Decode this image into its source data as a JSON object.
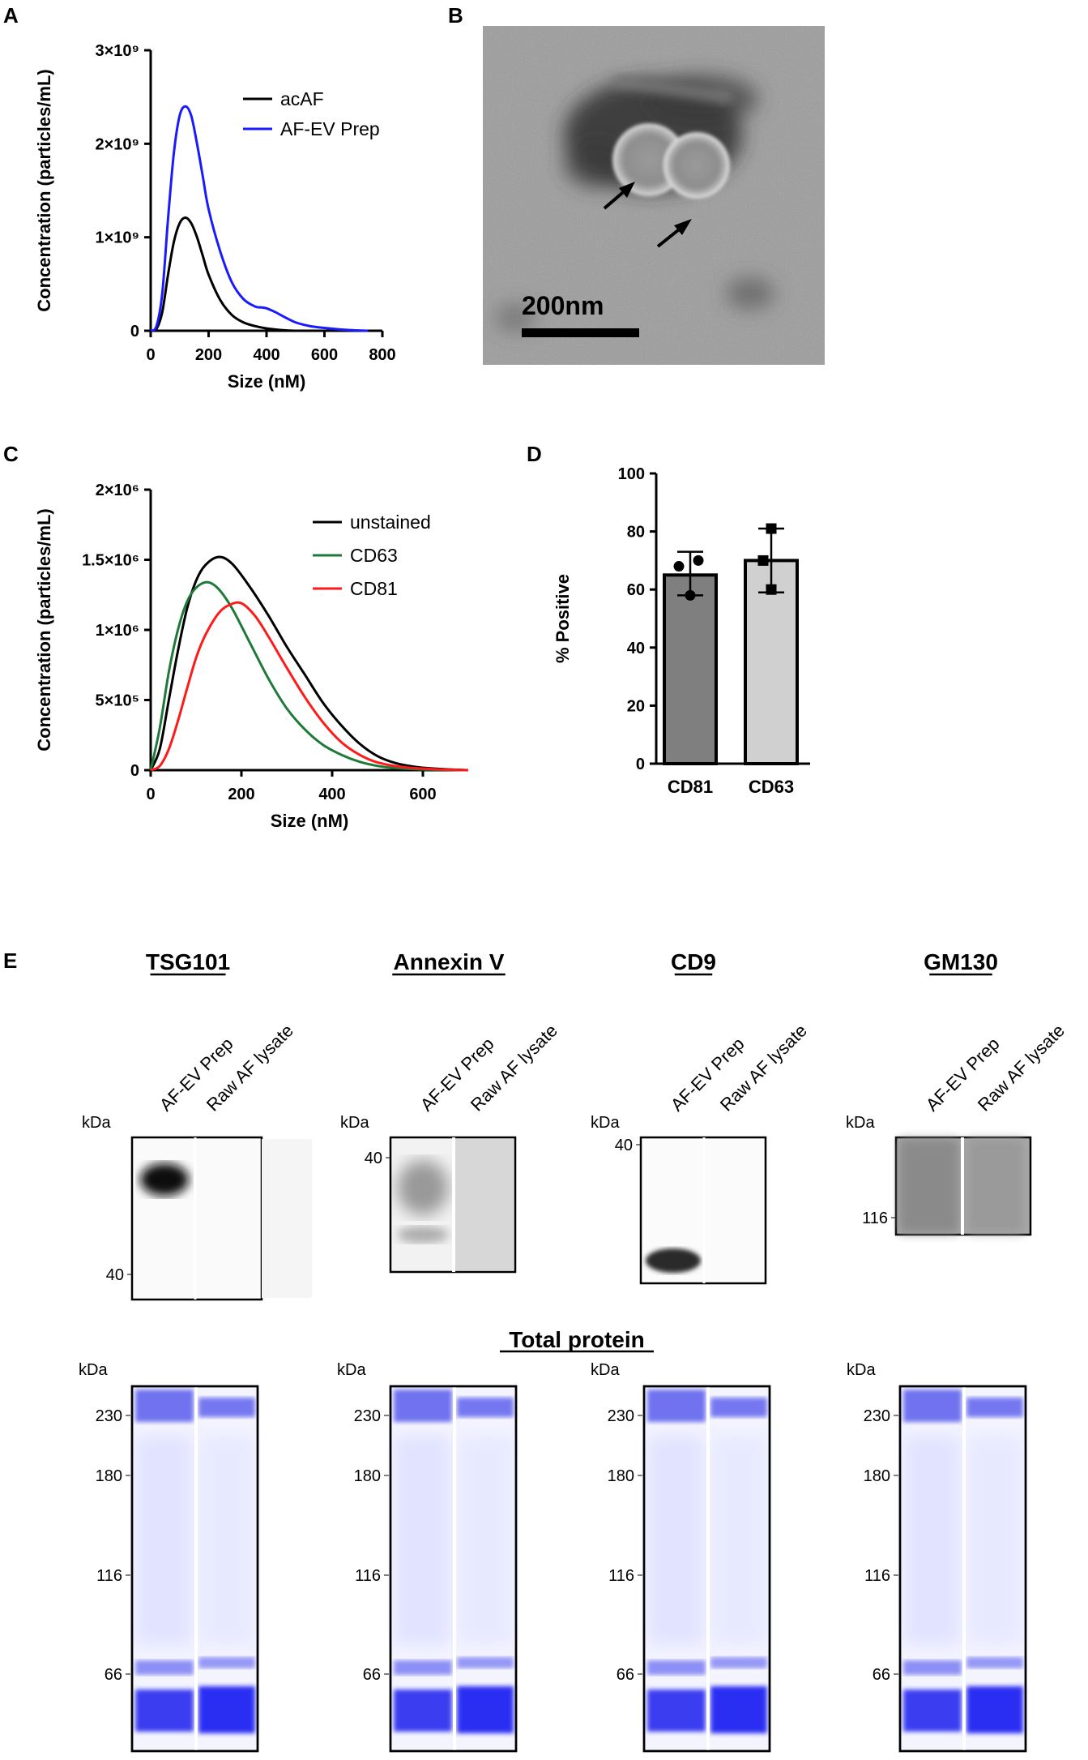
{
  "panels": {
    "A": "A",
    "B": "B",
    "C": "C",
    "D": "D",
    "E": "E"
  },
  "panel_a": {
    "chart_data": {
      "type": "line",
      "title": "",
      "xlabel": "Size (nM)",
      "ylabel": "Concentration (particles/mL)",
      "xlim": [
        0,
        800
      ],
      "ylim": [
        0,
        3000000000
      ],
      "xticks": [
        "0",
        "200",
        "400",
        "600",
        "800"
      ],
      "yticks": [
        "0",
        "1×10⁹",
        "2×10⁹",
        "3×10⁹"
      ],
      "series": [
        {
          "name": "acAF",
          "color": "#000000",
          "x": [
            0,
            20,
            40,
            60,
            80,
            100,
            120,
            140,
            160,
            180,
            200,
            240,
            280,
            320,
            360,
            400,
            450,
            500
          ],
          "y": [
            0,
            20000000,
            200000000,
            600000000,
            950000000,
            1150000000,
            1210000000,
            1150000000,
            1000000000,
            800000000,
            600000000,
            330000000,
            170000000,
            90000000,
            50000000,
            25000000,
            8000000,
            0
          ]
        },
        {
          "name": "AF-EV Prep",
          "color": "#1a1aff",
          "x": [
            0,
            20,
            40,
            60,
            80,
            100,
            120,
            140,
            160,
            180,
            200,
            240,
            280,
            320,
            360,
            380,
            400,
            430,
            460,
            500,
            550,
            600,
            650,
            700,
            750
          ],
          "y": [
            0,
            50000000,
            400000000,
            1200000000,
            1900000000,
            2300000000,
            2400000000,
            2300000000,
            2000000000,
            1650000000,
            1300000000,
            850000000,
            520000000,
            340000000,
            260000000,
            250000000,
            240000000,
            200000000,
            150000000,
            90000000,
            50000000,
            30000000,
            15000000,
            5000000,
            0
          ]
        }
      ]
    }
  },
  "panel_b": {
    "scale_label": "200nm"
  },
  "panel_c": {
    "chart_data": {
      "type": "line",
      "title": "",
      "xlabel": "Size (nM)",
      "ylabel": "Concentration (particles/mL)",
      "xlim": [
        0,
        700
      ],
      "ylim": [
        0,
        2000000
      ],
      "xticks": [
        "0",
        "200",
        "400",
        "600"
      ],
      "yticks": [
        "0",
        "5×10⁵",
        "1×10⁶",
        "1.5×10⁶",
        "2×10⁶"
      ],
      "series": [
        {
          "name": "unstained",
          "color": "#000000",
          "x": [
            0,
            20,
            40,
            60,
            80,
            100,
            120,
            150,
            180,
            220,
            260,
            300,
            340,
            380,
            420,
            460,
            500,
            540,
            580,
            620,
            660,
            700
          ],
          "y": [
            0,
            150000,
            500000,
            850000,
            1150000,
            1350000,
            1460000,
            1520000,
            1470000,
            1300000,
            1100000,
            880000,
            680000,
            480000,
            320000,
            190000,
            100000,
            50000,
            25000,
            12000,
            5000,
            0
          ]
        },
        {
          "name": "CD63",
          "color": "#1f7a3a",
          "x": [
            0,
            20,
            40,
            60,
            80,
            100,
            125,
            150,
            180,
            220,
            260,
            300,
            340,
            380,
            420,
            460,
            500,
            540,
            600,
            700
          ],
          "y": [
            0,
            300000,
            700000,
            1000000,
            1200000,
            1300000,
            1340000,
            1290000,
            1150000,
            900000,
            650000,
            440000,
            290000,
            180000,
            110000,
            60000,
            30000,
            15000,
            5000,
            0
          ]
        },
        {
          "name": "CD81",
          "color": "#ff1a1a",
          "x": [
            0,
            20,
            40,
            60,
            80,
            100,
            120,
            150,
            175,
            200,
            230,
            260,
            300,
            340,
            380,
            420,
            460,
            500,
            560,
            640,
            700
          ],
          "y": [
            0,
            30000,
            150000,
            350000,
            580000,
            800000,
            960000,
            1120000,
            1180000,
            1190000,
            1100000,
            950000,
            730000,
            520000,
            340000,
            200000,
            110000,
            55000,
            20000,
            5000,
            0
          ]
        }
      ]
    }
  },
  "panel_d": {
    "chart_data": {
      "type": "bar",
      "title": "",
      "xlabel": "",
      "ylabel": "% Positive",
      "ylim": [
        0,
        100
      ],
      "yticks": [
        "0",
        "20",
        "40",
        "60",
        "80",
        "100"
      ],
      "categories": [
        "CD81",
        "CD63"
      ],
      "values": [
        65,
        70
      ],
      "error_low": [
        58,
        59
      ],
      "error_high": [
        73,
        81
      ],
      "points": [
        [
          70,
          68,
          58
        ],
        [
          81,
          70,
          60
        ]
      ],
      "colors": [
        "#7f7f7f",
        "#d0d0d0"
      ]
    }
  },
  "panel_e": {
    "blots": [
      {
        "title": "TSG101",
        "lanes": [
          "AF-EV Prep",
          "Raw AF lysate"
        ],
        "unit": "kDa",
        "markers": [
          "40"
        ]
      },
      {
        "title": "Annexin V",
        "lanes": [
          "AF-EV Prep",
          "Raw AF lysate"
        ],
        "unit": "kDa",
        "markers": [
          "40"
        ]
      },
      {
        "title": "CD9",
        "lanes": [
          "AF-EV Prep",
          "Raw AF lysate"
        ],
        "unit": "kDa",
        "markers": [
          "40"
        ]
      },
      {
        "title": "GM130",
        "lanes": [
          "AF-EV Prep",
          "Raw AF lysate"
        ],
        "unit": "kDa",
        "markers": [
          "116"
        ]
      }
    ],
    "total_protein_title": "Total protein",
    "total_unit": "kDa",
    "total_markers": [
      "230",
      "180",
      "116",
      "66"
    ]
  }
}
